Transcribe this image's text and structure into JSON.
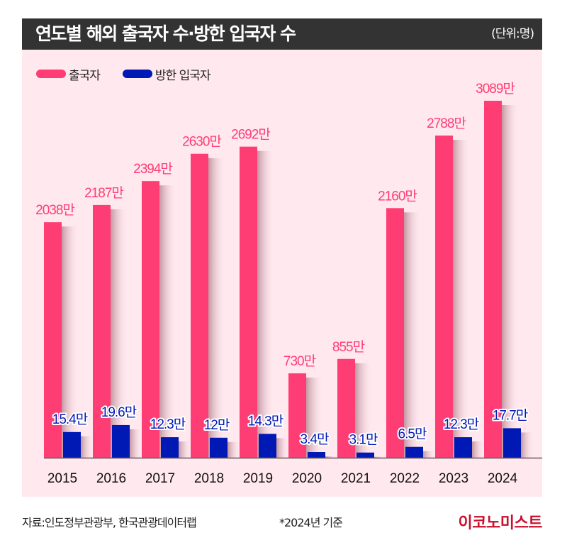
{
  "header": {
    "title": "연도별 해외 출국자 수·방한 입국자 수",
    "unit": "(단위:명)"
  },
  "colors": {
    "outbound": "#ff3d75",
    "inbound": "#0019b5",
    "header_bg": "#333333",
    "panel_bg": "#ffe8ee",
    "logo": "#c8102e"
  },
  "footer": {
    "source": "자료:인도정부관광부, 한국관광데이터랩",
    "note": "*2024년 기준",
    "logo": "이코노미스트"
  },
  "chart_data": {
    "type": "bar",
    "title": "연도별 해외 출국자 수·방한 입국자 수",
    "unit": "만 명",
    "xlabel": "",
    "ylabel": "",
    "grid": false,
    "legend_position": "top-left",
    "categories": [
      "2015",
      "2016",
      "2017",
      "2018",
      "2019",
      "2020",
      "2021",
      "2022",
      "2023",
      "2024"
    ],
    "series": [
      {
        "name": "출국자",
        "color": "#ff3d75",
        "values": [
          2038,
          2187,
          2394,
          2630,
          2692,
          730,
          855,
          2160,
          2788,
          3089
        ],
        "labels": [
          "2038만",
          "2187만",
          "2394만",
          "2630만",
          "2692만",
          "730만",
          "855만",
          "2160만",
          "2788만",
          "3089만"
        ]
      },
      {
        "name": "방한 입국자",
        "color": "#0019b5",
        "values": [
          15.4,
          19.6,
          12.3,
          12,
          14.3,
          3.4,
          3.1,
          6.5,
          12.3,
          17.7
        ],
        "labels": [
          "15.4만",
          "19.6만",
          "12.3만",
          "12만",
          "14.3만",
          "3.4만",
          "3.1만",
          "6.5만",
          "12.3만",
          "17.7만"
        ]
      }
    ]
  }
}
